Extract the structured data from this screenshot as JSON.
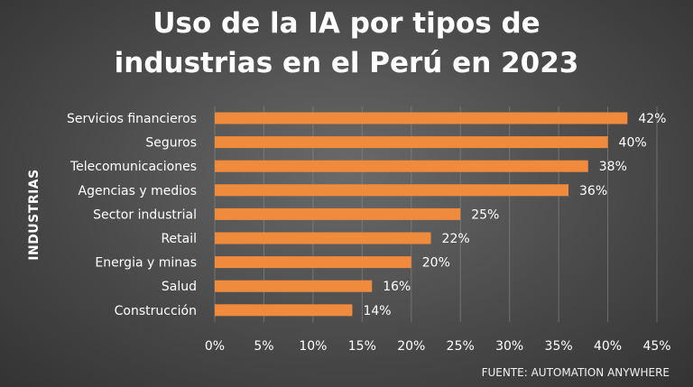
{
  "title_line1": "Uso de la IA por tipos de",
  "title_line2": "industrias en el Perú en 2023",
  "source": "FUENTE: AUTOMATION ANYWHERE",
  "chart_data": {
    "type": "bar",
    "orientation": "horizontal",
    "title": "Uso de la IA por tipos de industrias en el Perú en 2023",
    "ylabel": "INDUSTRIAS",
    "xlabel": "",
    "categories": [
      "Servicios financieros",
      "Seguros",
      "Telecomunicaciones",
      "Agencias y medios",
      "Sector industrial",
      "Retail",
      "Energia y minas",
      "Salud",
      "Construcción"
    ],
    "values": [
      42,
      40,
      38,
      36,
      25,
      22,
      20,
      16,
      14
    ],
    "value_labels": [
      "42%",
      "40%",
      "38%",
      "36%",
      "25%",
      "22%",
      "20%",
      "16%",
      "14%"
    ],
    "xticks": [
      "0%",
      "5%",
      "10%",
      "15%",
      "20%",
      "25%",
      "30%",
      "35%",
      "40%",
      "45%"
    ],
    "xlim": [
      0,
      45
    ],
    "grid": true,
    "bar_color": "#f08a3c"
  }
}
